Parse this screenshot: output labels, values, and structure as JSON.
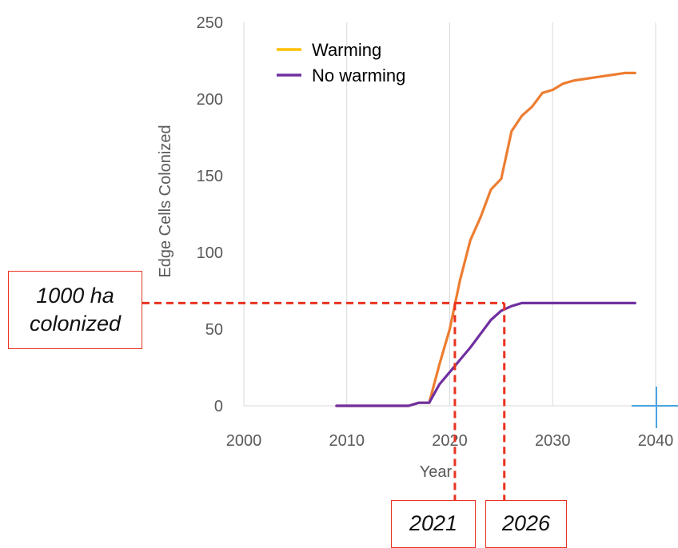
{
  "chart_data": {
    "type": "line",
    "xlabel": "Year",
    "ylabel": "Edge Cells Colonized",
    "xlim": [
      2000,
      2040
    ],
    "ylim": [
      0,
      250
    ],
    "xticks": [
      2000,
      2010,
      2020,
      2030,
      2040
    ],
    "yticks": [
      0,
      50,
      100,
      150,
      200,
      250
    ],
    "grid": "vertical",
    "legend_position": "top-left",
    "series": [
      {
        "name": "Warming",
        "legend_color": "#ffc000",
        "color": "#ed7d31",
        "x": [
          2009,
          2016,
          2017,
          2018,
          2019,
          2020,
          2021,
          2022,
          2023,
          2024,
          2025,
          2026,
          2027,
          2028,
          2029,
          2030,
          2031,
          2032,
          2034,
          2036,
          2037,
          2038
        ],
        "y": [
          0,
          0,
          2,
          2,
          27,
          50,
          82,
          108,
          123,
          141,
          148,
          179,
          189,
          195,
          204,
          206,
          210,
          212,
          214,
          216,
          217,
          217
        ]
      },
      {
        "name": "No warming",
        "legend_color": "#7030a0",
        "color": "#7030a0",
        "x": [
          2009,
          2016,
          2017,
          2018,
          2019,
          2020,
          2021,
          2022,
          2023,
          2024,
          2025,
          2026,
          2027,
          2028,
          2030,
          2035,
          2038
        ],
        "y": [
          0,
          0,
          2,
          2,
          14,
          22,
          30,
          38,
          47,
          56,
          62,
          65,
          67,
          67,
          67,
          67,
          67
        ]
      }
    ],
    "annotations": {
      "threshold_label": [
        "1000 ha",
        "colonized"
      ],
      "threshold_y": 67,
      "markers": [
        {
          "label": "2021",
          "x": 2020.5
        },
        {
          "label": "2026",
          "x": 2025.3
        }
      ],
      "line_color": "#e8321f"
    }
  }
}
